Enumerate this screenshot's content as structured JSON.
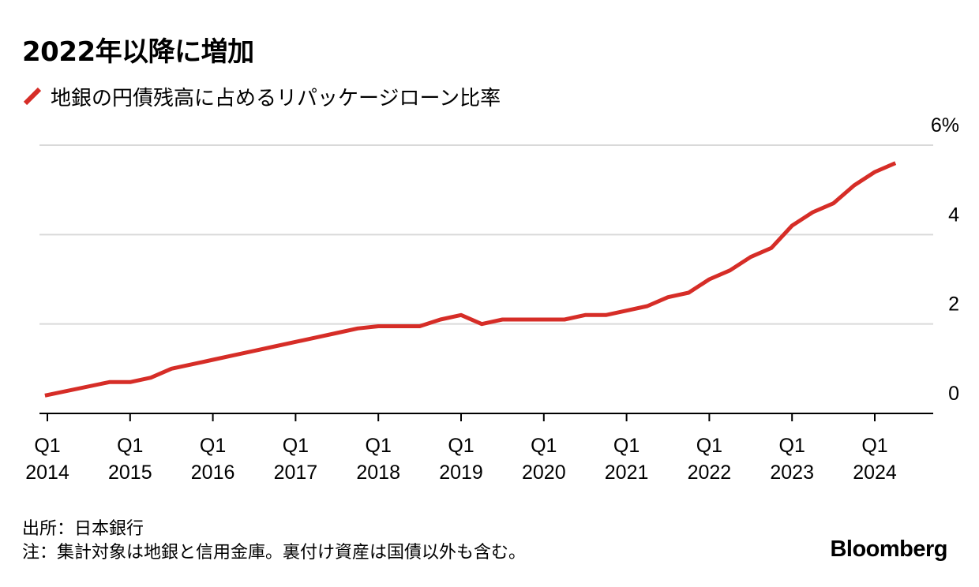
{
  "chart_data": {
    "type": "line",
    "title": "2022年以降に増加",
    "legend_position": "top-left",
    "grid": true,
    "colors": {
      "series": "#d62d27",
      "grid": "#d9d9d9",
      "axis": "#000000"
    },
    "x_ticks": [
      {
        "q": "Q1",
        "year": "2014",
        "x": 2014.0
      },
      {
        "q": "Q1",
        "year": "2015",
        "x": 2015.0
      },
      {
        "q": "Q1",
        "year": "2016",
        "x": 2016.0
      },
      {
        "q": "Q1",
        "year": "2017",
        "x": 2017.0
      },
      {
        "q": "Q1",
        "year": "2018",
        "x": 2018.0
      },
      {
        "q": "Q1",
        "year": "2019",
        "x": 2019.0
      },
      {
        "q": "Q1",
        "year": "2020",
        "x": 2020.0
      },
      {
        "q": "Q1",
        "year": "2021",
        "x": 2021.0
      },
      {
        "q": "Q1",
        "year": "2022",
        "x": 2022.0
      },
      {
        "q": "Q1",
        "year": "2023",
        "x": 2023.0
      },
      {
        "q": "Q1",
        "year": "2024",
        "x": 2024.0
      }
    ],
    "y_ticks": [
      {
        "label": "0",
        "value": 0
      },
      {
        "label": "2",
        "value": 2
      },
      {
        "label": "4",
        "value": 4
      },
      {
        "label": "6%",
        "value": 6
      }
    ],
    "xlim": [
      2013.97,
      2024.73
    ],
    "ylim": [
      0,
      6
    ],
    "series": [
      {
        "name": "地銀の円債残高に占めるリパッケージローン比率",
        "x": [
          2013.97,
          2014.75,
          2015.0,
          2015.25,
          2015.5,
          2015.75,
          2016.0,
          2016.25,
          2016.5,
          2016.75,
          2017.0,
          2017.25,
          2017.5,
          2017.75,
          2018.0,
          2018.25,
          2018.5,
          2018.75,
          2019.0,
          2019.25,
          2019.5,
          2019.75,
          2020.0,
          2020.25,
          2020.5,
          2020.75,
          2021.0,
          2021.25,
          2021.5,
          2021.75,
          2022.0,
          2022.25,
          2022.5,
          2022.75,
          2023.0,
          2023.25,
          2023.5,
          2023.75,
          2024.0,
          2024.25
        ],
        "values": [
          0.4,
          0.7,
          0.7,
          0.8,
          1.0,
          1.1,
          1.2,
          1.3,
          1.4,
          1.5,
          1.6,
          1.7,
          1.8,
          1.9,
          1.95,
          1.95,
          1.95,
          2.1,
          2.2,
          2.0,
          2.1,
          2.1,
          2.1,
          2.1,
          2.2,
          2.2,
          2.3,
          2.4,
          2.6,
          2.7,
          3.0,
          3.2,
          3.5,
          3.7,
          4.2,
          4.5,
          4.7,
          5.1,
          5.4,
          5.6
        ]
      }
    ]
  },
  "footer": {
    "source": "出所：日本銀行",
    "note": "注：集計対象は地銀と信用金庫。裏付け資産は国債以外も含む。"
  },
  "brand": "Bloomberg"
}
